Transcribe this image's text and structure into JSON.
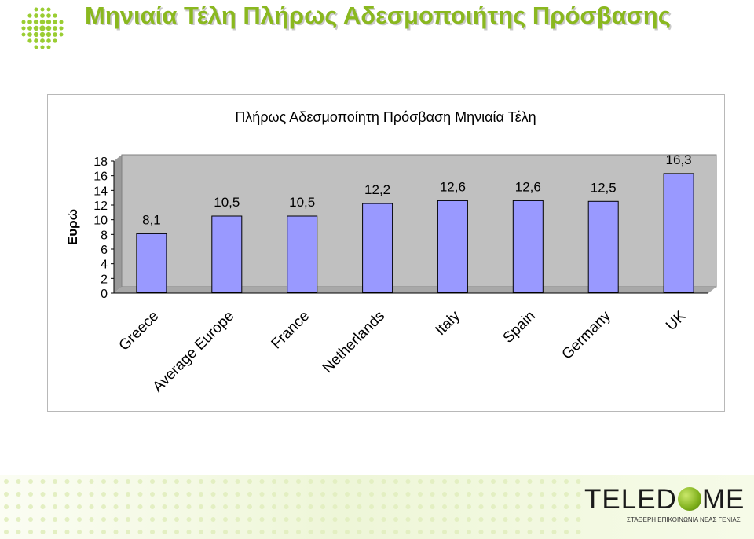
{
  "page": {
    "title": "Μηνιαία Τέλη Πλήρως Αδεσμοποιήτης Πρόσβασης",
    "accent_color": "#8ab81f",
    "logo_icon": "green-dot-grid-icon"
  },
  "brand": {
    "name_left": "TELED",
    "name_right": "ME",
    "ball_icon": "green-sphere-icon",
    "tagline": "ΣΤΑΘΕΡΗ ΕΠΙΚΟΙΝΩΝΙΑ ΝΕΑΣ ΓΕΝΙΑΣ"
  },
  "chart_data": {
    "type": "bar",
    "title": "Πλήρως Αδεσμοποίητη Πρόσβαση Μηνιαία Τέλη",
    "xlabel": "",
    "ylabel": "Ευρώ",
    "categories": [
      "Greece",
      "Average Europe",
      "France",
      "Netherlands",
      "Italy",
      "Spain",
      "Germany",
      "UK"
    ],
    "values": [
      8.1,
      10.5,
      10.5,
      12.2,
      12.6,
      12.6,
      12.5,
      16.3
    ],
    "data_labels": [
      "8,1",
      "10,5",
      "10,5",
      "12,2",
      "12,6",
      "12,6",
      "12,5",
      "16,3"
    ],
    "ylim": [
      0,
      18
    ],
    "yticks": [
      "0",
      "2",
      "4",
      "6",
      "8",
      "10",
      "12",
      "14",
      "16",
      "18"
    ],
    "grid": false,
    "legend": "none",
    "bar_color": "#9999ff",
    "plot_background": "#c0c0c0"
  }
}
